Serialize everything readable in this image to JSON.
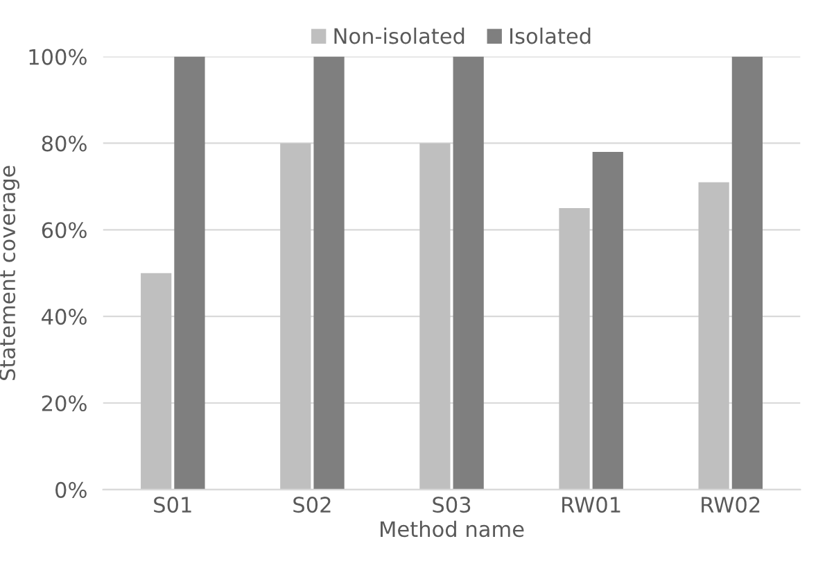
{
  "chart_data": {
    "type": "bar",
    "xlabel": "Method name",
    "ylabel": "Statement coverage",
    "categories": [
      "S01",
      "S02",
      "S03",
      "RW01",
      "RW02"
    ],
    "series": [
      {
        "name": "Non-isolated",
        "color": "#bfbfbf",
        "values": [
          50,
          80,
          80,
          65,
          71
        ]
      },
      {
        "name": "Isolated",
        "color": "#7f7f7f",
        "values": [
          100,
          100,
          100,
          78,
          100
        ]
      }
    ],
    "ylim": [
      0,
      100
    ],
    "yticks": [
      {
        "value": 0,
        "label": "0%"
      },
      {
        "value": 20,
        "label": "20%"
      },
      {
        "value": 40,
        "label": "40%"
      },
      {
        "value": 60,
        "label": "60%"
      },
      {
        "value": 80,
        "label": "80%"
      },
      {
        "value": 100,
        "label": "100%"
      }
    ],
    "grid": "y",
    "legend": "top"
  }
}
